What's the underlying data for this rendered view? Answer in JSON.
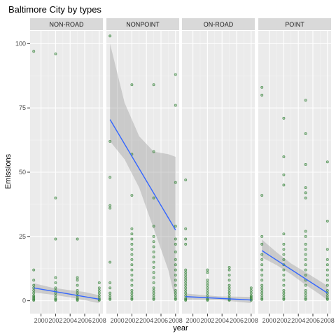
{
  "chart_data": {
    "type": "scatter",
    "title": "Baltimore City by types",
    "xlabel": "year",
    "ylabel": "Emissions",
    "xlim": [
      1998.5,
      2008.5
    ],
    "ylim": [
      -5,
      105
    ],
    "x_ticks": [
      2000,
      2002,
      2004,
      2006,
      2008
    ],
    "y_ticks": [
      0,
      25,
      50,
      75,
      100
    ],
    "grid": true,
    "legend": "none",
    "colors": {
      "points": "#2e7d32",
      "line": "#3366ff",
      "band": "#999999",
      "panel_bg": "#ebebeb",
      "strip_bg": "#d9d9d9"
    },
    "facets": [
      {
        "name": "NON-ROAD",
        "fit": {
          "x": [
            1999,
            2008
          ],
          "y": [
            5.0,
            0.6
          ]
        },
        "band": {
          "x": [
            1999,
            2001.5,
            2004,
            2006,
            2008
          ],
          "lower": [
            3.2,
            2.4,
            1.3,
            0.2,
            -0.9
          ],
          "upper": [
            6.8,
            5.1,
            4.1,
            3.4,
            2.1
          ]
        },
        "points": [
          [
            1999,
            97
          ],
          [
            1999,
            12
          ],
          [
            1999,
            8
          ],
          [
            1999,
            6
          ],
          [
            1999,
            5
          ],
          [
            1999,
            4
          ],
          [
            1999,
            3
          ],
          [
            1999,
            2
          ],
          [
            1999,
            1.5
          ],
          [
            1999,
            1
          ],
          [
            1999,
            0.5
          ],
          [
            1999,
            0.2
          ],
          [
            2002,
            96
          ],
          [
            2002,
            40
          ],
          [
            2002,
            24
          ],
          [
            2002,
            9
          ],
          [
            2002,
            7
          ],
          [
            2002,
            5
          ],
          [
            2002,
            4
          ],
          [
            2002,
            3
          ],
          [
            2002,
            2
          ],
          [
            2002,
            1
          ],
          [
            2002,
            0.5
          ],
          [
            2002,
            0.2
          ],
          [
            2005,
            24
          ],
          [
            2005,
            9
          ],
          [
            2005,
            8
          ],
          [
            2005,
            6
          ],
          [
            2005,
            4
          ],
          [
            2005,
            3
          ],
          [
            2005,
            2
          ],
          [
            2005,
            1
          ],
          [
            2005,
            0.5
          ],
          [
            2005,
            0.2
          ],
          [
            2008,
            7
          ],
          [
            2008,
            5
          ],
          [
            2008,
            4
          ],
          [
            2008,
            3
          ],
          [
            2008,
            2
          ],
          [
            2008,
            1
          ],
          [
            2008,
            0.5
          ],
          [
            2008,
            0.2
          ]
        ]
      },
      {
        "name": "NONPOINT",
        "fit": {
          "x": [
            1999,
            2008
          ],
          "y": [
            70.5,
            27.5
          ]
        },
        "band": {
          "x": [
            1999,
            2001,
            2003,
            2005,
            2007,
            2008
          ],
          "lower": [
            62,
            55,
            44,
            28,
            12,
            0
          ],
          "upper": [
            100,
            77,
            64,
            58,
            57,
            56
          ]
        },
        "points": [
          [
            1999,
            103
          ],
          [
            1999,
            62
          ],
          [
            1999,
            48
          ],
          [
            1999,
            37
          ],
          [
            1999,
            36
          ],
          [
            1999,
            15
          ],
          [
            1999,
            7
          ],
          [
            1999,
            5
          ],
          [
            1999,
            3
          ],
          [
            1999,
            2
          ],
          [
            1999,
            1
          ],
          [
            1999,
            0.5
          ],
          [
            2002,
            84
          ],
          [
            2002,
            57
          ],
          [
            2002,
            41
          ],
          [
            2002,
            28
          ],
          [
            2002,
            26
          ],
          [
            2002,
            24
          ],
          [
            2002,
            22
          ],
          [
            2002,
            20
          ],
          [
            2002,
            18
          ],
          [
            2002,
            16
          ],
          [
            2002,
            14
          ],
          [
            2002,
            12
          ],
          [
            2002,
            10
          ],
          [
            2002,
            8
          ],
          [
            2002,
            6
          ],
          [
            2002,
            4
          ],
          [
            2002,
            3
          ],
          [
            2002,
            2
          ],
          [
            2002,
            1
          ],
          [
            2002,
            0.5
          ],
          [
            2005,
            84
          ],
          [
            2005,
            58
          ],
          [
            2005,
            40
          ],
          [
            2005,
            29
          ],
          [
            2005,
            25
          ],
          [
            2005,
            23
          ],
          [
            2005,
            21
          ],
          [
            2005,
            19
          ],
          [
            2005,
            17
          ],
          [
            2005,
            15
          ],
          [
            2005,
            13
          ],
          [
            2005,
            11
          ],
          [
            2005,
            9
          ],
          [
            2005,
            7
          ],
          [
            2005,
            5
          ],
          [
            2005,
            4
          ],
          [
            2005,
            3
          ],
          [
            2005,
            2
          ],
          [
            2005,
            1
          ],
          [
            2005,
            0.5
          ],
          [
            2008,
            88
          ],
          [
            2008,
            76
          ],
          [
            2008,
            46
          ],
          [
            2008,
            29
          ],
          [
            2008,
            24
          ],
          [
            2008,
            22
          ],
          [
            2008,
            19
          ],
          [
            2008,
            16
          ],
          [
            2008,
            14
          ],
          [
            2008,
            12
          ],
          [
            2008,
            10
          ],
          [
            2008,
            8
          ],
          [
            2008,
            6
          ],
          [
            2008,
            4
          ],
          [
            2008,
            3
          ],
          [
            2008,
            2
          ],
          [
            2008,
            1
          ],
          [
            2008,
            0.5
          ]
        ]
      },
      {
        "name": "ON-ROAD",
        "fit": {
          "x": [
            1999,
            2008
          ],
          "y": [
            1.6,
            0.3
          ]
        },
        "band": {
          "x": [
            1999,
            2003.5,
            2008
          ],
          "lower": [
            0.4,
            0.3,
            -0.9
          ],
          "upper": [
            2.8,
            1.7,
            1.5
          ]
        },
        "points": [
          [
            1999,
            47
          ],
          [
            1999,
            28
          ],
          [
            1999,
            24
          ],
          [
            1999,
            22
          ],
          [
            1999,
            12
          ],
          [
            1999,
            11
          ],
          [
            1999,
            10
          ],
          [
            1999,
            9
          ],
          [
            1999,
            8
          ],
          [
            1999,
            7
          ],
          [
            1999,
            6
          ],
          [
            1999,
            5
          ],
          [
            1999,
            4
          ],
          [
            1999,
            3
          ],
          [
            1999,
            2
          ],
          [
            1999,
            1
          ],
          [
            1999,
            0.5
          ],
          [
            1999,
            0.2
          ],
          [
            2002,
            12
          ],
          [
            2002,
            11
          ],
          [
            2002,
            8
          ],
          [
            2002,
            7
          ],
          [
            2002,
            6
          ],
          [
            2002,
            5
          ],
          [
            2002,
            4
          ],
          [
            2002,
            3
          ],
          [
            2002,
            2
          ],
          [
            2002,
            1
          ],
          [
            2002,
            0.5
          ],
          [
            2002,
            0.2
          ],
          [
            2005,
            13
          ],
          [
            2005,
            12
          ],
          [
            2005,
            10
          ],
          [
            2005,
            8
          ],
          [
            2005,
            6
          ],
          [
            2005,
            5
          ],
          [
            2005,
            4
          ],
          [
            2005,
            3
          ],
          [
            2005,
            2
          ],
          [
            2005,
            1
          ],
          [
            2005,
            0.5
          ],
          [
            2005,
            0.2
          ],
          [
            2008,
            5
          ],
          [
            2008,
            4
          ],
          [
            2008,
            3
          ],
          [
            2008,
            2
          ],
          [
            2008,
            1.5
          ],
          [
            2008,
            1
          ],
          [
            2008,
            0.5
          ],
          [
            2008,
            0.2
          ]
        ]
      },
      {
        "name": "POINT",
        "fit": {
          "x": [
            1999,
            2008
          ],
          "y": [
            19.5,
            3.0
          ]
        },
        "band": {
          "x": [
            1999,
            2001,
            2003,
            2005,
            2007,
            2008
          ],
          "lower": [
            16.8,
            13.9,
            10.3,
            6.2,
            2.4,
            0.2
          ],
          "upper": [
            23.8,
            18.9,
            14.5,
            11.1,
            7.6,
            5.8
          ]
        },
        "points": [
          [
            1999,
            83
          ],
          [
            1999,
            80
          ],
          [
            1999,
            41
          ],
          [
            1999,
            25
          ],
          [
            1999,
            22
          ],
          [
            1999,
            18
          ],
          [
            1999,
            16
          ],
          [
            1999,
            14
          ],
          [
            1999,
            12
          ],
          [
            1999,
            10
          ],
          [
            1999,
            8
          ],
          [
            1999,
            6
          ],
          [
            1999,
            5
          ],
          [
            1999,
            4
          ],
          [
            1999,
            3
          ],
          [
            1999,
            2
          ],
          [
            1999,
            1
          ],
          [
            1999,
            0.5
          ],
          [
            2002,
            71
          ],
          [
            2002,
            56
          ],
          [
            2002,
            49
          ],
          [
            2002,
            45
          ],
          [
            2002,
            26
          ],
          [
            2002,
            22
          ],
          [
            2002,
            20
          ],
          [
            2002,
            18
          ],
          [
            2002,
            16
          ],
          [
            2002,
            14
          ],
          [
            2002,
            12
          ],
          [
            2002,
            10
          ],
          [
            2002,
            8
          ],
          [
            2002,
            6
          ],
          [
            2002,
            4
          ],
          [
            2002,
            3
          ],
          [
            2002,
            2
          ],
          [
            2002,
            1
          ],
          [
            2002,
            0.5
          ],
          [
            2005,
            78
          ],
          [
            2005,
            65
          ],
          [
            2005,
            53
          ],
          [
            2005,
            44
          ],
          [
            2005,
            42
          ],
          [
            2005,
            40
          ],
          [
            2005,
            27
          ],
          [
            2005,
            25
          ],
          [
            2005,
            22
          ],
          [
            2005,
            20
          ],
          [
            2005,
            18
          ],
          [
            2005,
            16
          ],
          [
            2005,
            14
          ],
          [
            2005,
            12
          ],
          [
            2005,
            10
          ],
          [
            2005,
            8
          ],
          [
            2005,
            6
          ],
          [
            2005,
            4
          ],
          [
            2005,
            3
          ],
          [
            2005,
            2
          ],
          [
            2005,
            1
          ],
          [
            2005,
            0.5
          ],
          [
            2008,
            54
          ],
          [
            2008,
            31
          ],
          [
            2008,
            20
          ],
          [
            2008,
            16
          ],
          [
            2008,
            14
          ],
          [
            2008,
            12
          ],
          [
            2008,
            10
          ],
          [
            2008,
            8
          ],
          [
            2008,
            6
          ],
          [
            2008,
            4
          ],
          [
            2008,
            3
          ],
          [
            2008,
            2
          ],
          [
            2008,
            1
          ],
          [
            2008,
            0.5
          ]
        ]
      }
    ]
  }
}
